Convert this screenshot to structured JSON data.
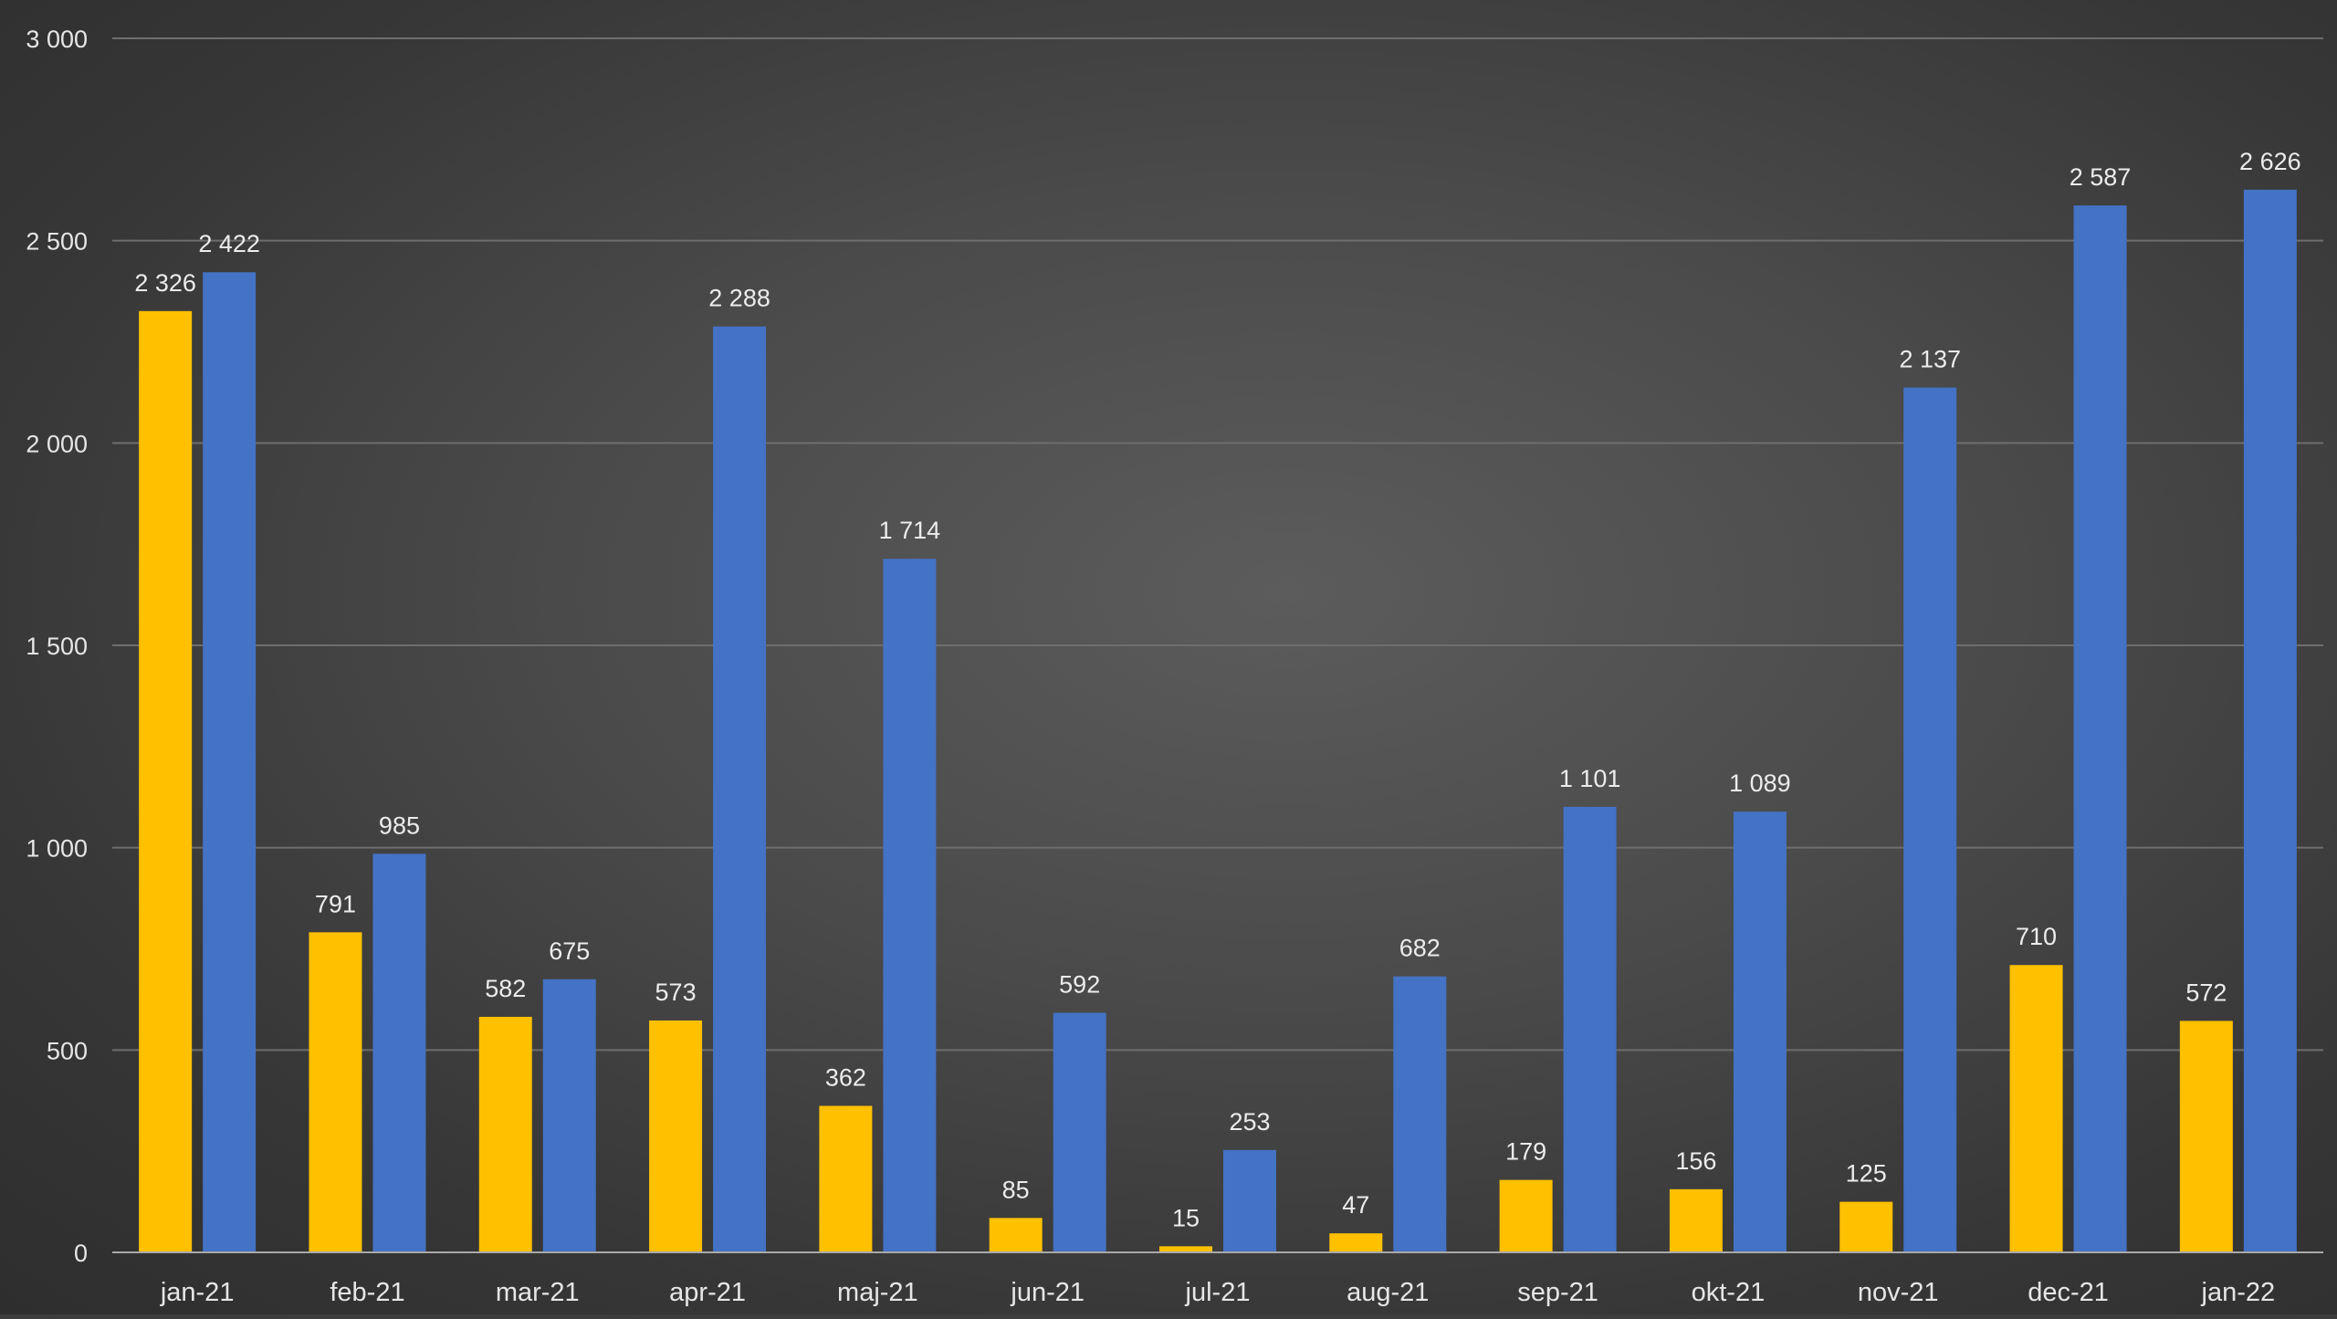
{
  "chart_data": {
    "type": "bar",
    "title": "",
    "xlabel": "",
    "ylabel": "",
    "ylim": [
      0,
      3000
    ],
    "yticks": [
      0,
      500,
      1000,
      1500,
      2000,
      2500,
      3000
    ],
    "ytick_labels": [
      "0",
      "500",
      "1 000",
      "1 500",
      "2 000",
      "2 500",
      "3 000"
    ],
    "grid": true,
    "legend": "none",
    "categories": [
      "jan-21",
      "feb-21",
      "mar-21",
      "apr-21",
      "maj-21",
      "jun-21",
      "jul-21",
      "aug-21",
      "sep-21",
      "okt-21",
      "nov-21",
      "dec-21",
      "jan-22"
    ],
    "series": [
      {
        "color": "#ffc000",
        "values": [
          2326,
          791,
          582,
          573,
          362,
          85,
          15,
          47,
          179,
          156,
          125,
          710,
          572
        ],
        "labels": [
          "2 326",
          "791",
          "582",
          "573",
          "362",
          "85",
          "15",
          "47",
          "179",
          "156",
          "125",
          "710",
          "572"
        ]
      },
      {
        "color": "#4472c4",
        "values": [
          2422,
          985,
          675,
          2288,
          1714,
          592,
          253,
          682,
          1101,
          1089,
          2137,
          2587,
          2626
        ],
        "labels": [
          "2 422",
          "985",
          "675",
          "2 288",
          "1 714",
          "592",
          "253",
          "682",
          "1 101",
          "1 089",
          "2 137",
          "2 587",
          "2 626"
        ]
      }
    ]
  }
}
